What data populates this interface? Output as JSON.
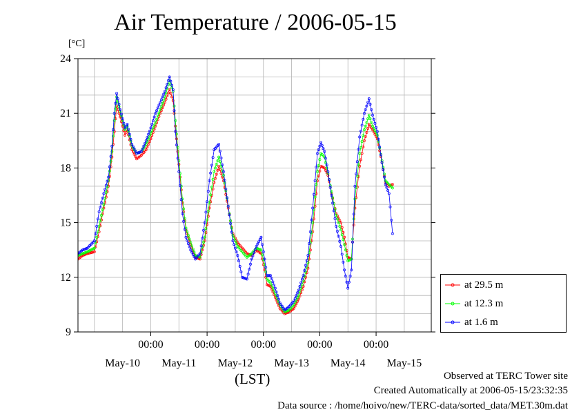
{
  "chart_data": {
    "type": "line",
    "title": "Air Temperature / 2006-05-15",
    "unit_label": "[°C]",
    "xlabel": "(LST)",
    "ylim": [
      9,
      24
    ],
    "yticks": [
      9,
      12,
      15,
      18,
      21,
      24
    ],
    "grid": true,
    "legend_position": "bottom-right, outside plot",
    "x_domain": [
      "2006-05-09T17:00",
      "2006-05-15T23:30"
    ],
    "time_tick_labels": [
      "00:00",
      "00:00",
      "00:00",
      "00:00",
      "00:00"
    ],
    "time_tick_times": [
      "2006-05-11T00:00",
      "2006-05-12T00:00",
      "2006-05-13T00:00",
      "2006-05-14T00:00",
      "2006-05-15T00:00"
    ],
    "date_labels": [
      "May-10",
      "May-11",
      "May-12",
      "May-13",
      "May-14",
      "May-15"
    ],
    "date_label_times": [
      "2006-05-10T12:00",
      "2006-05-11T12:00",
      "2006-05-12T12:00",
      "2006-05-13T12:00",
      "2006-05-14T12:00",
      "2006-05-15T12:00"
    ],
    "series": [
      {
        "name": "at 29.5 m",
        "color": "#ff0000",
        "points": [
          [
            "2006-05-09T17:00",
            13.0
          ],
          [
            "2006-05-09T19:00",
            13.2
          ],
          [
            "2006-05-09T21:00",
            13.3
          ],
          [
            "2006-05-10T00:00",
            13.4
          ],
          [
            "2006-05-10T02:00",
            14.5
          ],
          [
            "2006-05-10T04:00",
            15.8
          ],
          [
            "2006-05-10T06:00",
            17.0
          ],
          [
            "2006-05-10T07:30",
            18.6
          ],
          [
            "2006-05-10T08:30",
            20.0
          ],
          [
            "2006-05-10T09:30",
            21.4
          ],
          [
            "2006-05-10T11:00",
            20.8
          ],
          [
            "2006-05-10T13:00",
            19.8
          ],
          [
            "2006-05-10T14:00",
            20.1
          ],
          [
            "2006-05-10T16:00",
            19.0
          ],
          [
            "2006-05-10T18:00",
            18.5
          ],
          [
            "2006-05-10T20:00",
            18.7
          ],
          [
            "2006-05-10T22:00",
            19.0
          ],
          [
            "2006-05-11T00:00",
            19.6
          ],
          [
            "2006-05-11T02:00",
            20.3
          ],
          [
            "2006-05-11T04:00",
            21.0
          ],
          [
            "2006-05-11T06:00",
            21.6
          ],
          [
            "2006-05-11T08:00",
            22.3
          ],
          [
            "2006-05-11T09:30",
            21.7
          ],
          [
            "2006-05-11T10:30",
            20.3
          ],
          [
            "2006-05-11T12:00",
            18.2
          ],
          [
            "2006-05-11T13:30",
            16.1
          ],
          [
            "2006-05-11T15:00",
            14.6
          ],
          [
            "2006-05-11T17:00",
            13.8
          ],
          [
            "2006-05-11T19:00",
            13.1
          ],
          [
            "2006-05-11T21:00",
            13.0
          ],
          [
            "2006-05-11T23:00",
            14.0
          ],
          [
            "2006-05-12T01:00",
            15.8
          ],
          [
            "2006-05-12T03:00",
            17.2
          ],
          [
            "2006-05-12T05:00",
            18.1
          ],
          [
            "2006-05-12T07:00",
            17.3
          ],
          [
            "2006-05-12T09:00",
            15.8
          ],
          [
            "2006-05-12T11:00",
            14.4
          ],
          [
            "2006-05-12T13:00",
            13.9
          ],
          [
            "2006-05-12T15:00",
            13.6
          ],
          [
            "2006-05-12T17:00",
            13.3
          ],
          [
            "2006-05-12T19:00",
            13.2
          ],
          [
            "2006-05-12T21:00",
            13.5
          ],
          [
            "2006-05-12T23:00",
            13.3
          ],
          [
            "2006-05-13T00:30",
            12.4
          ],
          [
            "2006-05-13T01:30",
            11.6
          ],
          [
            "2006-05-13T03:00",
            11.5
          ],
          [
            "2006-05-13T05:00",
            10.9
          ],
          [
            "2006-05-13T07:00",
            10.3
          ],
          [
            "2006-05-13T09:00",
            10.0
          ],
          [
            "2006-05-13T11:00",
            10.1
          ],
          [
            "2006-05-13T13:00",
            10.3
          ],
          [
            "2006-05-13T15:00",
            10.8
          ],
          [
            "2006-05-13T17:00",
            11.5
          ],
          [
            "2006-05-13T19:00",
            12.5
          ],
          [
            "2006-05-13T21:00",
            14.5
          ],
          [
            "2006-05-13T23:00",
            17.3
          ],
          [
            "2006-05-14T00:30",
            18.1
          ],
          [
            "2006-05-14T02:00",
            18.0
          ],
          [
            "2006-05-14T03:30",
            17.6
          ],
          [
            "2006-05-14T05:00",
            16.6
          ],
          [
            "2006-05-14T07:00",
            15.5
          ],
          [
            "2006-05-14T09:00",
            15.0
          ],
          [
            "2006-05-14T10:30",
            14.2
          ],
          [
            "2006-05-14T12:00",
            13.1
          ],
          [
            "2006-05-14T13:30",
            13.0
          ],
          [
            "2006-05-14T15:00",
            15.8
          ],
          [
            "2006-05-14T17:00",
            18.1
          ],
          [
            "2006-05-14T19:00",
            19.5
          ],
          [
            "2006-05-14T21:00",
            20.4
          ],
          [
            "2006-05-14T22:30",
            20.1
          ],
          [
            "2006-05-15T00:30",
            19.6
          ],
          [
            "2006-05-15T02:30",
            18.3
          ],
          [
            "2006-05-15T04:00",
            17.2
          ],
          [
            "2006-05-15T05:30",
            17.0
          ],
          [
            "2006-05-15T07:00",
            17.1
          ]
        ]
      },
      {
        "name": "at 12.3 m",
        "color": "#00ff00",
        "points": [
          [
            "2006-05-09T17:00",
            13.2
          ],
          [
            "2006-05-09T19:00",
            13.3
          ],
          [
            "2006-05-09T21:00",
            13.4
          ],
          [
            "2006-05-10T00:00",
            13.6
          ],
          [
            "2006-05-10T02:00",
            14.8
          ],
          [
            "2006-05-10T04:00",
            16.0
          ],
          [
            "2006-05-10T06:00",
            17.3
          ],
          [
            "2006-05-10T07:30",
            18.9
          ],
          [
            "2006-05-10T08:30",
            20.6
          ],
          [
            "2006-05-10T09:30",
            21.9
          ],
          [
            "2006-05-10T11:00",
            21.1
          ],
          [
            "2006-05-10T13:00",
            20.1
          ],
          [
            "2006-05-10T14:00",
            20.3
          ],
          [
            "2006-05-10T16:00",
            19.2
          ],
          [
            "2006-05-10T18:00",
            18.8
          ],
          [
            "2006-05-10T20:00",
            18.9
          ],
          [
            "2006-05-10T22:00",
            19.3
          ],
          [
            "2006-05-11T00:00",
            19.9
          ],
          [
            "2006-05-11T02:00",
            20.5
          ],
          [
            "2006-05-11T04:00",
            21.2
          ],
          [
            "2006-05-11T06:00",
            21.9
          ],
          [
            "2006-05-11T08:00",
            22.8
          ],
          [
            "2006-05-11T09:30",
            22.2
          ],
          [
            "2006-05-11T10:30",
            20.6
          ],
          [
            "2006-05-11T12:00",
            18.4
          ],
          [
            "2006-05-11T13:30",
            16.3
          ],
          [
            "2006-05-11T15:00",
            14.7
          ],
          [
            "2006-05-11T17:00",
            13.9
          ],
          [
            "2006-05-11T19:00",
            13.2
          ],
          [
            "2006-05-11T21:00",
            13.1
          ],
          [
            "2006-05-11T23:00",
            14.2
          ],
          [
            "2006-05-12T01:00",
            16.1
          ],
          [
            "2006-05-12T03:00",
            17.8
          ],
          [
            "2006-05-12T05:00",
            18.6
          ],
          [
            "2006-05-12T07:00",
            17.6
          ],
          [
            "2006-05-12T09:00",
            15.9
          ],
          [
            "2006-05-12T11:00",
            14.3
          ],
          [
            "2006-05-12T13:00",
            13.7
          ],
          [
            "2006-05-12T15:00",
            13.4
          ],
          [
            "2006-05-12T17:00",
            13.1
          ],
          [
            "2006-05-12T19:00",
            13.3
          ],
          [
            "2006-05-12T21:00",
            13.6
          ],
          [
            "2006-05-12T23:00",
            13.5
          ],
          [
            "2006-05-13T00:30",
            12.7
          ],
          [
            "2006-05-13T01:30",
            11.9
          ],
          [
            "2006-05-13T03:00",
            11.7
          ],
          [
            "2006-05-13T05:00",
            11.1
          ],
          [
            "2006-05-13T07:00",
            10.5
          ],
          [
            "2006-05-13T09:00",
            10.1
          ],
          [
            "2006-05-13T11:00",
            10.2
          ],
          [
            "2006-05-13T13:00",
            10.5
          ],
          [
            "2006-05-13T15:00",
            11.0
          ],
          [
            "2006-05-13T17:00",
            11.8
          ],
          [
            "2006-05-13T19:00",
            12.8
          ],
          [
            "2006-05-13T21:00",
            15.0
          ],
          [
            "2006-05-13T23:00",
            17.8
          ],
          [
            "2006-05-14T00:30",
            18.8
          ],
          [
            "2006-05-14T02:00",
            18.6
          ],
          [
            "2006-05-14T03:30",
            17.7
          ],
          [
            "2006-05-14T05:00",
            16.7
          ],
          [
            "2006-05-14T07:00",
            15.4
          ],
          [
            "2006-05-14T09:00",
            14.6
          ],
          [
            "2006-05-14T10:30",
            13.8
          ],
          [
            "2006-05-14T12:00",
            12.9
          ],
          [
            "2006-05-14T13:30",
            13.0
          ],
          [
            "2006-05-14T15:00",
            16.3
          ],
          [
            "2006-05-14T17:00",
            18.8
          ],
          [
            "2006-05-14T19:00",
            20.1
          ],
          [
            "2006-05-14T21:00",
            20.9
          ],
          [
            "2006-05-14T22:30",
            20.3
          ],
          [
            "2006-05-15T00:30",
            19.8
          ],
          [
            "2006-05-15T02:30",
            18.4
          ],
          [
            "2006-05-15T04:00",
            17.3
          ],
          [
            "2006-05-15T05:30",
            17.1
          ],
          [
            "2006-05-15T07:00",
            16.9
          ]
        ]
      },
      {
        "name": "at 1.6 m",
        "color": "#0000ff",
        "points": [
          [
            "2006-05-09T17:00",
            13.3
          ],
          [
            "2006-05-09T19:00",
            13.5
          ],
          [
            "2006-05-09T21:00",
            13.6
          ],
          [
            "2006-05-10T00:00",
            14.0
          ],
          [
            "2006-05-10T02:00",
            15.6
          ],
          [
            "2006-05-10T04:00",
            16.6
          ],
          [
            "2006-05-10T06:00",
            17.5
          ],
          [
            "2006-05-10T07:30",
            19.2
          ],
          [
            "2006-05-10T08:30",
            21.0
          ],
          [
            "2006-05-10T09:30",
            22.1
          ],
          [
            "2006-05-10T11:00",
            21.2
          ],
          [
            "2006-05-10T13:00",
            20.2
          ],
          [
            "2006-05-10T14:00",
            20.4
          ],
          [
            "2006-05-10T16:00",
            19.3
          ],
          [
            "2006-05-10T18:00",
            18.8
          ],
          [
            "2006-05-10T20:00",
            18.9
          ],
          [
            "2006-05-10T22:00",
            19.5
          ],
          [
            "2006-05-11T00:00",
            20.2
          ],
          [
            "2006-05-11T02:00",
            21.0
          ],
          [
            "2006-05-11T04:00",
            21.6
          ],
          [
            "2006-05-11T06:00",
            22.2
          ],
          [
            "2006-05-11T08:00",
            23.0
          ],
          [
            "2006-05-11T09:30",
            22.3
          ],
          [
            "2006-05-11T10:30",
            20.0
          ],
          [
            "2006-05-11T12:00",
            17.8
          ],
          [
            "2006-05-11T13:30",
            15.5
          ],
          [
            "2006-05-11T15:00",
            14.2
          ],
          [
            "2006-05-11T17:00",
            13.5
          ],
          [
            "2006-05-11T19:00",
            13.0
          ],
          [
            "2006-05-11T21:00",
            13.3
          ],
          [
            "2006-05-11T23:00",
            15.0
          ],
          [
            "2006-05-12T01:00",
            17.3
          ],
          [
            "2006-05-12T03:00",
            19.0
          ],
          [
            "2006-05-12T05:00",
            19.3
          ],
          [
            "2006-05-12T07:00",
            17.8
          ],
          [
            "2006-05-12T09:00",
            15.9
          ],
          [
            "2006-05-12T11:00",
            14.0
          ],
          [
            "2006-05-12T13:00",
            13.2
          ],
          [
            "2006-05-12T15:00",
            12.0
          ],
          [
            "2006-05-12T17:00",
            11.9
          ],
          [
            "2006-05-12T19:00",
            13.0
          ],
          [
            "2006-05-12T21:00",
            13.7
          ],
          [
            "2006-05-12T23:00",
            14.2
          ],
          [
            "2006-05-13T00:30",
            13.0
          ],
          [
            "2006-05-13T01:30",
            12.1
          ],
          [
            "2006-05-13T03:00",
            12.1
          ],
          [
            "2006-05-13T05:00",
            11.4
          ],
          [
            "2006-05-13T07:00",
            10.6
          ],
          [
            "2006-05-13T09:00",
            10.2
          ],
          [
            "2006-05-13T11:00",
            10.4
          ],
          [
            "2006-05-13T13:00",
            10.7
          ],
          [
            "2006-05-13T15:00",
            11.3
          ],
          [
            "2006-05-13T17:00",
            12.1
          ],
          [
            "2006-05-13T19:00",
            13.2
          ],
          [
            "2006-05-13T21:00",
            15.8
          ],
          [
            "2006-05-13T23:00",
            18.8
          ],
          [
            "2006-05-14T00:30",
            19.4
          ],
          [
            "2006-05-14T02:00",
            18.9
          ],
          [
            "2006-05-14T03:30",
            17.8
          ],
          [
            "2006-05-14T05:00",
            16.5
          ],
          [
            "2006-05-14T07:00",
            14.8
          ],
          [
            "2006-05-14T09:00",
            13.7
          ],
          [
            "2006-05-14T10:30",
            12.4
          ],
          [
            "2006-05-14T12:00",
            11.4
          ],
          [
            "2006-05-14T13:30",
            12.4
          ],
          [
            "2006-05-14T15:00",
            17.0
          ],
          [
            "2006-05-14T17:00",
            19.7
          ],
          [
            "2006-05-14T19:00",
            21.0
          ],
          [
            "2006-05-14T21:00",
            21.8
          ],
          [
            "2006-05-14T22:30",
            20.9
          ],
          [
            "2006-05-15T00:30",
            20.0
          ],
          [
            "2006-05-15T02:30",
            18.3
          ],
          [
            "2006-05-15T04:00",
            17.1
          ],
          [
            "2006-05-15T05:30",
            16.6
          ],
          [
            "2006-05-15T07:00",
            14.4
          ]
        ]
      }
    ]
  },
  "footer": {
    "site": "Observed at TERC Tower site",
    "created": "Created Automatically at 2006-05-15/23:32:35",
    "source": "Data source : /home/hoivo/new/TERC-data/sorted_data/MET.30m.dat"
  }
}
